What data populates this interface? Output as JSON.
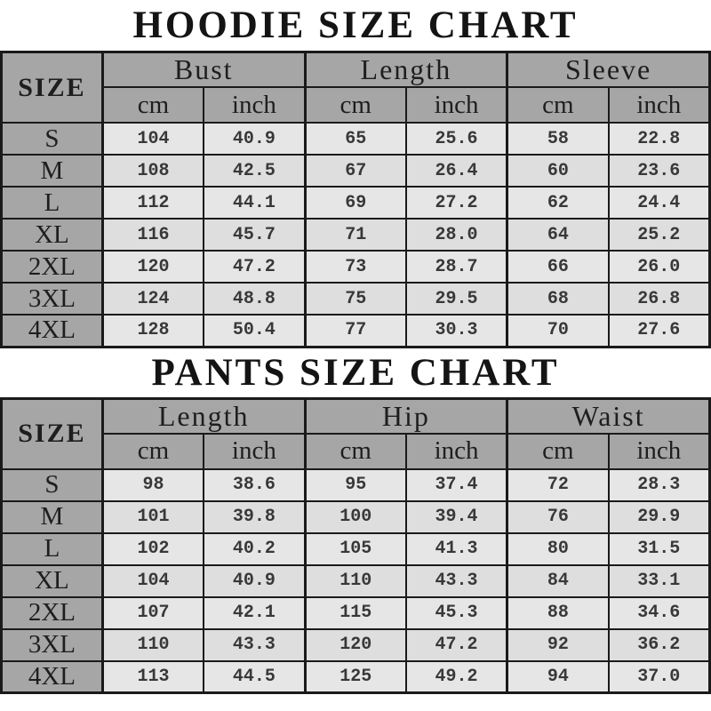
{
  "colors": {
    "background": "#ffffff",
    "header_fill": "#a6a6a6",
    "row_fill_light": "#e6e6e6",
    "row_fill_dark": "#dedede",
    "border": "#1a1a1a",
    "title_text": "#141414",
    "header_text": "#1e1e1e",
    "value_text": "#383838"
  },
  "chart_data": [
    {
      "type": "table",
      "title": "HOODIE SIZE CHART",
      "corner_header": "SIZE",
      "column_groups": [
        "Bust",
        "Length",
        "Sleeve"
      ],
      "unit_subheaders": [
        "cm",
        "inch"
      ],
      "columns": [
        "Bust cm",
        "Bust inch",
        "Length cm",
        "Length inch",
        "Sleeve cm",
        "Sleeve inch"
      ],
      "rows": [
        {
          "size": "S",
          "values": [
            "104",
            "40.9",
            "65",
            "25.6",
            "58",
            "22.8"
          ]
        },
        {
          "size": "M",
          "values": [
            "108",
            "42.5",
            "67",
            "26.4",
            "60",
            "23.6"
          ]
        },
        {
          "size": "L",
          "values": [
            "112",
            "44.1",
            "69",
            "27.2",
            "62",
            "24.4"
          ]
        },
        {
          "size": "XL",
          "values": [
            "116",
            "45.7",
            "71",
            "28.0",
            "64",
            "25.2"
          ]
        },
        {
          "size": "2XL",
          "values": [
            "120",
            "47.2",
            "73",
            "28.7",
            "66",
            "26.0"
          ]
        },
        {
          "size": "3XL",
          "values": [
            "124",
            "48.8",
            "75",
            "29.5",
            "68",
            "26.8"
          ]
        },
        {
          "size": "4XL",
          "values": [
            "128",
            "50.4",
            "77",
            "30.3",
            "70",
            "27.6"
          ]
        }
      ]
    },
    {
      "type": "table",
      "title": "PANTS SIZE CHART",
      "corner_header": "SIZE",
      "column_groups": [
        "Length",
        "Hip",
        "Waist"
      ],
      "unit_subheaders": [
        "cm",
        "inch"
      ],
      "columns": [
        "Length cm",
        "Length inch",
        "Hip cm",
        "Hip inch",
        "Waist cm",
        "Waist inch"
      ],
      "rows": [
        {
          "size": "S",
          "values": [
            "98",
            "38.6",
            "95",
            "37.4",
            "72",
            "28.3"
          ]
        },
        {
          "size": "M",
          "values": [
            "101",
            "39.8",
            "100",
            "39.4",
            "76",
            "29.9"
          ]
        },
        {
          "size": "L",
          "values": [
            "102",
            "40.2",
            "105",
            "41.3",
            "80",
            "31.5"
          ]
        },
        {
          "size": "XL",
          "values": [
            "104",
            "40.9",
            "110",
            "43.3",
            "84",
            "33.1"
          ]
        },
        {
          "size": "2XL",
          "values": [
            "107",
            "42.1",
            "115",
            "45.3",
            "88",
            "34.6"
          ]
        },
        {
          "size": "3XL",
          "values": [
            "110",
            "43.3",
            "120",
            "47.2",
            "92",
            "36.2"
          ]
        },
        {
          "size": "4XL",
          "values": [
            "113",
            "44.5",
            "125",
            "49.2",
            "94",
            "37.0"
          ]
        }
      ]
    }
  ]
}
